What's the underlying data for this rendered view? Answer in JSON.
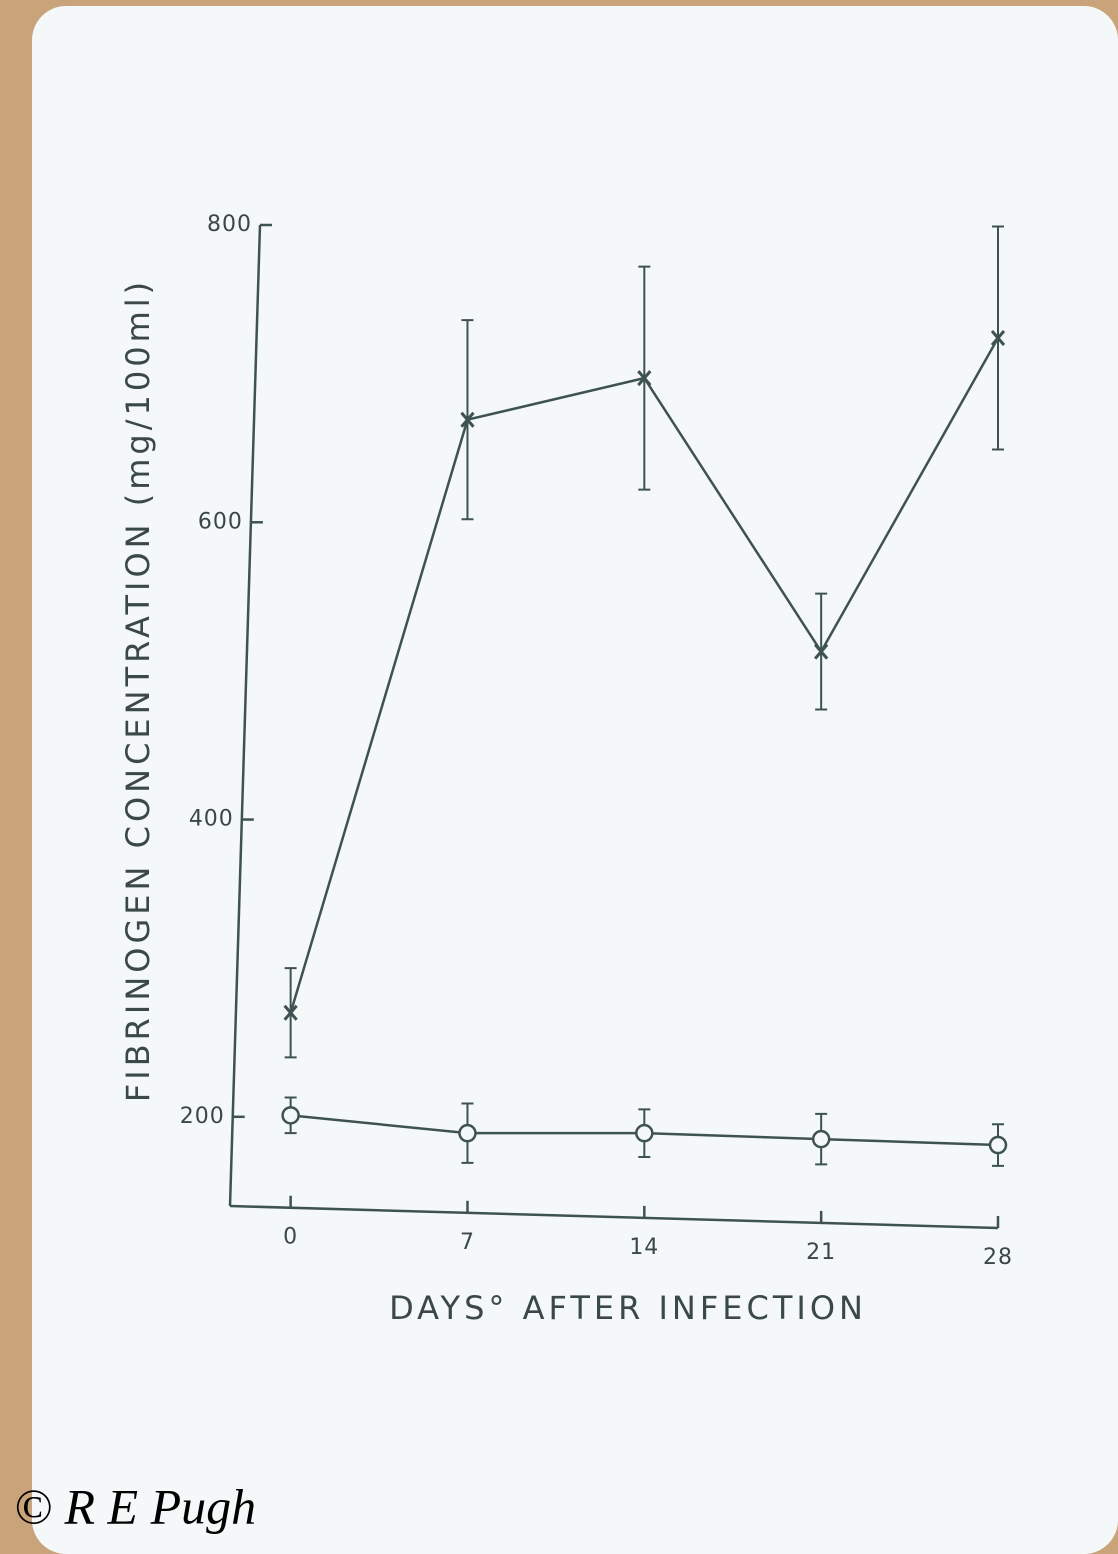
{
  "chart_data": {
    "type": "line",
    "x_label": "DAYS° AFTER INFECTION",
    "y_label": "FIBRINOGEN CONCENTRATION (mg/100ml)",
    "x": [
      0,
      7,
      14,
      21,
      28
    ],
    "series": [
      {
        "color": "#3f5252",
        "marker": "x",
        "values": [
          270,
          669,
          697,
          513,
          724
        ],
        "errors": [
          30,
          67,
          75,
          39,
          75
        ]
      },
      {
        "color": "#3f5252",
        "marker": "o",
        "values": [
          201,
          189,
          189,
          185,
          181
        ],
        "errors": [
          12,
          20,
          16,
          17,
          14
        ]
      }
    ],
    "xlim": [
      -2.4,
      28
    ],
    "xticks": [
      0,
      7,
      14,
      21,
      28
    ],
    "ylim": [
      140,
      800
    ],
    "yticks": [
      200,
      400,
      600,
      800
    ]
  },
  "watermark": "© R E Pugh"
}
